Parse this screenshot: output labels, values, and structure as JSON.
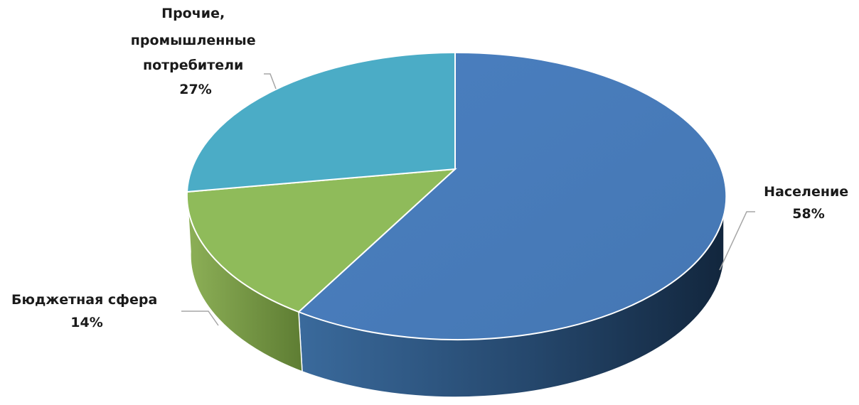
{
  "chart_data": {
    "type": "pie",
    "style": "3d",
    "title": "",
    "slices": [
      {
        "label": "Население",
        "value": 58,
        "value_label": "58%",
        "color": "#4f81bd"
      },
      {
        "label": "Бюджетная сфера",
        "value": 14,
        "value_label": "14%",
        "color": "#8fbb5a"
      },
      {
        "label_lines": [
          "Прочие,",
          "промышленные",
          "потребители"
        ],
        "value": 27,
        "value_label": "27%",
        "color": "#4bacc6"
      }
    ]
  }
}
